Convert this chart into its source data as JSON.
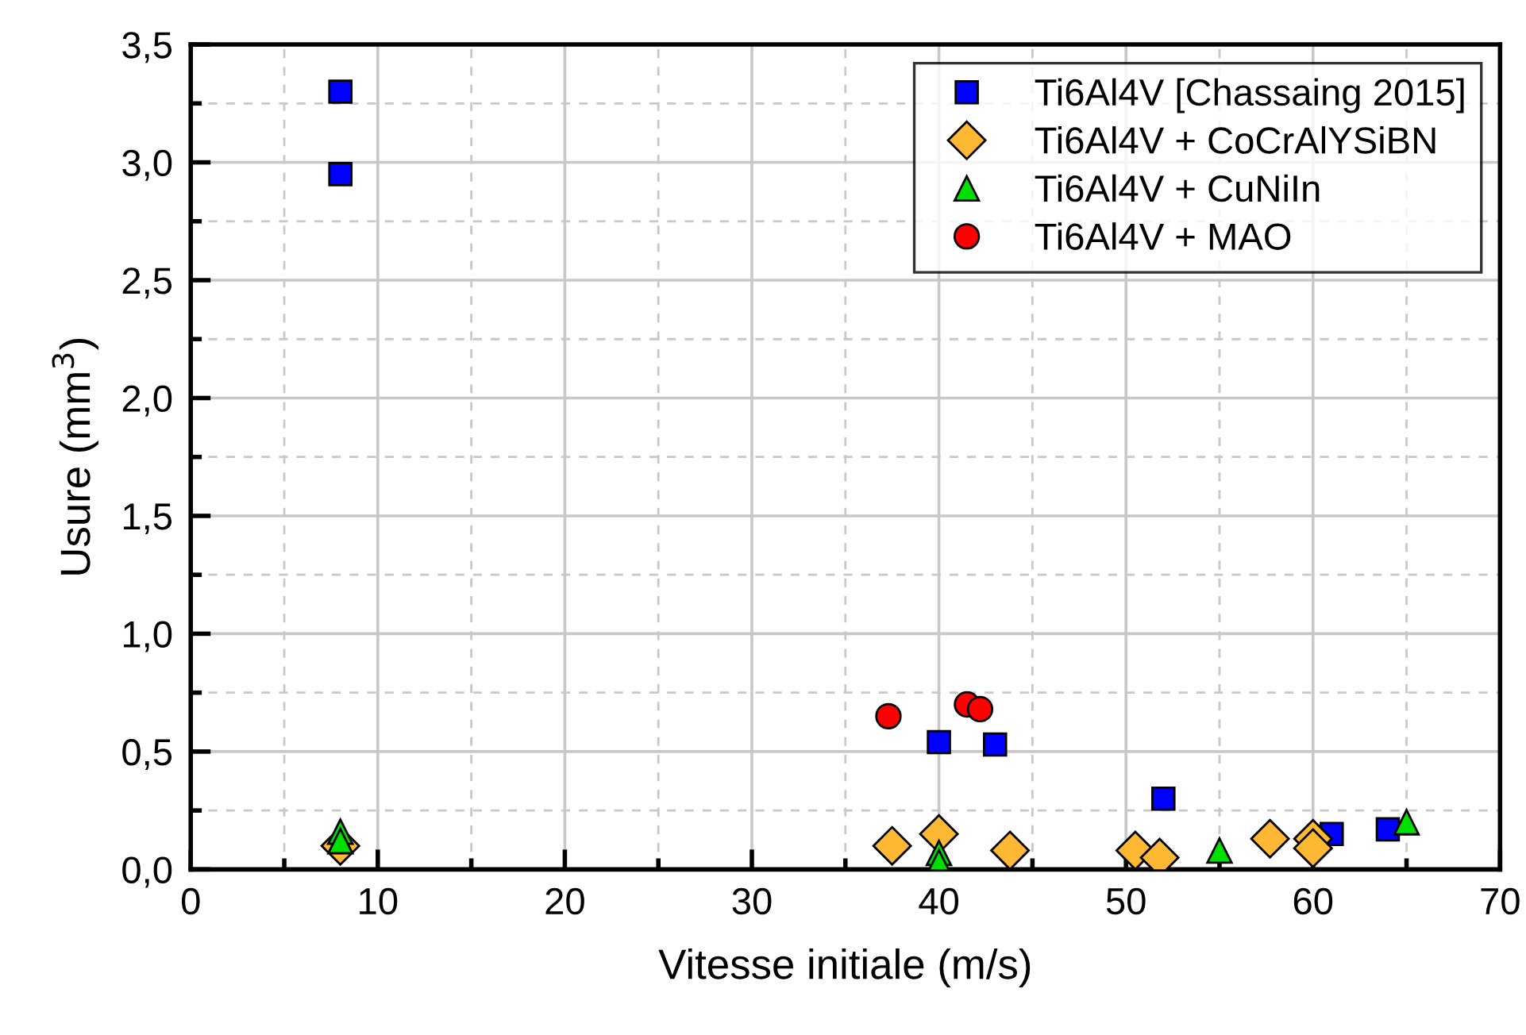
{
  "chart_data": {
    "type": "scatter",
    "xlabel": "Vitesse initiale (m/s)",
    "ylabel": "Usure (mm$^{3}$)",
    "xlim": [
      0,
      70
    ],
    "ylim": [
      0,
      3.5
    ],
    "xticks": [
      0,
      {
        "value": 5,
        "label": null
      },
      10,
      {
        "value": 15,
        "label": null
      },
      20,
      {
        "value": 25,
        "label": null
      },
      30,
      {
        "value": 35,
        "label": null
      },
      40,
      {
        "value": 45,
        "label": null
      },
      50,
      {
        "value": 55,
        "label": null
      },
      60,
      {
        "value": 65,
        "label": null
      },
      70
    ],
    "yticks": [
      {
        "value": 0,
        "label": "0,0"
      },
      {
        "value": 0.25,
        "label": null
      },
      {
        "value": 0.5,
        "label": "0,5"
      },
      {
        "value": 0.75,
        "label": null
      },
      {
        "value": 1.0,
        "label": "1,0"
      },
      {
        "value": 1.25,
        "label": null
      },
      {
        "value": 1.5,
        "label": "1,5"
      },
      {
        "value": 1.75,
        "label": null
      },
      {
        "value": 2.0,
        "label": "2,0"
      },
      {
        "value": 2.25,
        "label": null
      },
      {
        "value": 2.5,
        "label": "2,5"
      },
      {
        "value": 2.75,
        "label": null
      },
      {
        "value": 3.0,
        "label": "3,0"
      },
      {
        "value": 3.25,
        "label": null
      },
      {
        "value": 3.5,
        "label": "3,5"
      }
    ],
    "grid": true,
    "legend": "top right",
    "series": [
      {
        "name": "Ti6Al4V [Chassaing 2015]",
        "color": "#0000ff",
        "marker": "square",
        "x": [
          8,
          8,
          40,
          43,
          52,
          61,
          64
        ],
        "values": [
          3.3,
          2.95,
          0.54,
          0.53,
          0.3,
          0.15,
          0.17
        ]
      },
      {
        "name": "Ti6Al4V + CoCrAlYSiBN",
        "color": "#ffb833",
        "marker": "diamond",
        "x": [
          8,
          37.5,
          40,
          43.8,
          50.5,
          51.8,
          57.7,
          60,
          60
        ],
        "values": [
          0.1,
          0.1,
          0.15,
          0.08,
          0.08,
          0.05,
          0.13,
          0.13,
          0.09
        ]
      },
      {
        "name": "Ti6Al4V + CuNiIn",
        "color": "#00e000",
        "marker": "triangle",
        "x": [
          8,
          8,
          40,
          40,
          55,
          65
        ],
        "values": [
          0.16,
          0.12,
          0.07,
          0.03,
          0.08,
          0.2
        ]
      },
      {
        "name": "Ti6Al4V + MAO",
        "color": "#ff0000",
        "marker": "circle",
        "x": [
          37.3,
          41.5,
          42.2
        ],
        "values": [
          0.65,
          0.7,
          0.68
        ]
      }
    ]
  }
}
